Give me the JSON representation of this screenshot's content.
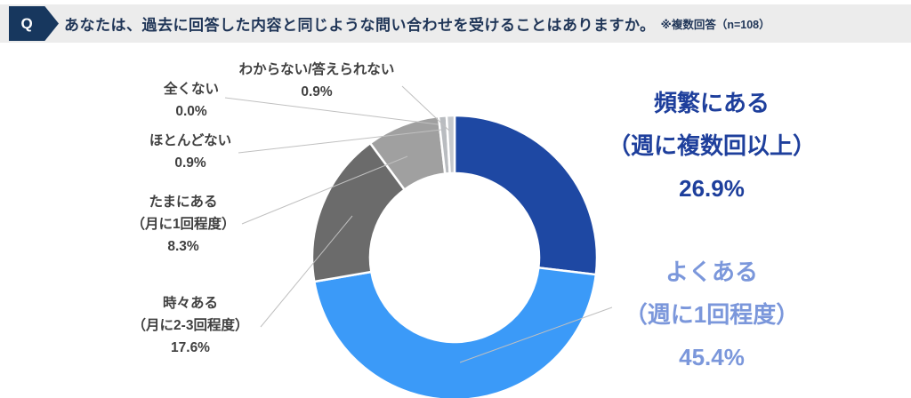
{
  "header": {
    "q_label": "Q",
    "question": "あなたは、過去に回答した内容と同じような問い合わせを受けることはありますか。",
    "note": "※複数回答（n=108）"
  },
  "chart_data": {
    "type": "pie",
    "subtype": "donut",
    "title": "あなたは、過去に回答した内容と同じような問い合わせを受けることはありますか。",
    "sample_note": "複数回答（n=108）",
    "n": 108,
    "unit": "%",
    "start_angle_deg": 0,
    "direction": "clockwise",
    "legend_position": "none",
    "segments": [
      {
        "label": "頻繁にある（週に複数回以上）",
        "value": 26.9,
        "color": "#1e48a3"
      },
      {
        "label": "よくある（週に1回程度）",
        "value": 45.4,
        "color": "#3b9af8"
      },
      {
        "label": "時々ある（月に2-3回程度）",
        "value": 17.6,
        "color": "#6b6b6b"
      },
      {
        "label": "たまにある（月に1回程度）",
        "value": 8.3,
        "color": "#a0a0a0"
      },
      {
        "label": "ほとんどない",
        "value": 0.9,
        "color": "#b9bcc0"
      },
      {
        "label": "全くない",
        "value": 0.0,
        "color": "#d9d9d9"
      },
      {
        "label": "わからない/答えられない",
        "value": 0.9,
        "color": "#c6c9cd"
      }
    ],
    "callouts": [
      {
        "line1": "わからない/答えられない",
        "pct": "0.9%"
      },
      {
        "line1": "全くない",
        "pct": "0.0%"
      },
      {
        "line1": "ほとんどない",
        "pct": "0.9%"
      },
      {
        "line1": "たまにある",
        "line2": "（月に1回程度）",
        "pct": "8.3%"
      },
      {
        "line1": "時々ある",
        "line2": "（月に2-3回程度）",
        "pct": "17.6%"
      },
      {
        "line1": "頻繁にある",
        "line2": "（週に複数回以上）",
        "pct": "26.9%"
      },
      {
        "line1": "よくある",
        "line2": "（週に1回程度）",
        "pct": "45.4%"
      }
    ],
    "colors": {
      "accent_dark_blue": "#1e48a3",
      "accent_light_blue": "#3b9af8",
      "label_dark_blue": "#1e3f9c",
      "label_periwinkle": "#7b97db",
      "label_gray": "#404040",
      "header_bg": "#ececec",
      "badge_bg": "#17375e",
      "leader_line": "#c0c0c0"
    }
  }
}
